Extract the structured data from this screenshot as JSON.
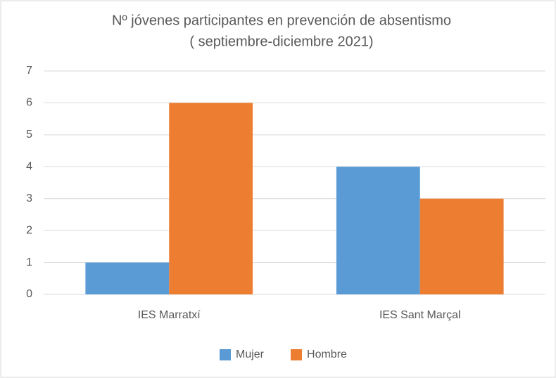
{
  "chart_data": {
    "type": "bar",
    "title": "Nº jóvenes participantes en prevención de absentismo",
    "subtitle": "( septiembre-diciembre 2021)",
    "categories": [
      "IES Marratxí",
      "IES Sant Marçal"
    ],
    "series": [
      {
        "name": "Mujer",
        "color": "#5b9bd5",
        "values": [
          1,
          4
        ]
      },
      {
        "name": "Hombre",
        "color": "#ed7d31",
        "values": [
          6,
          3
        ]
      }
    ],
    "ylim": [
      0,
      7
    ],
    "yticks": [
      0,
      1,
      2,
      3,
      4,
      5,
      6,
      7
    ],
    "grid": true,
    "legend": "bottom"
  }
}
